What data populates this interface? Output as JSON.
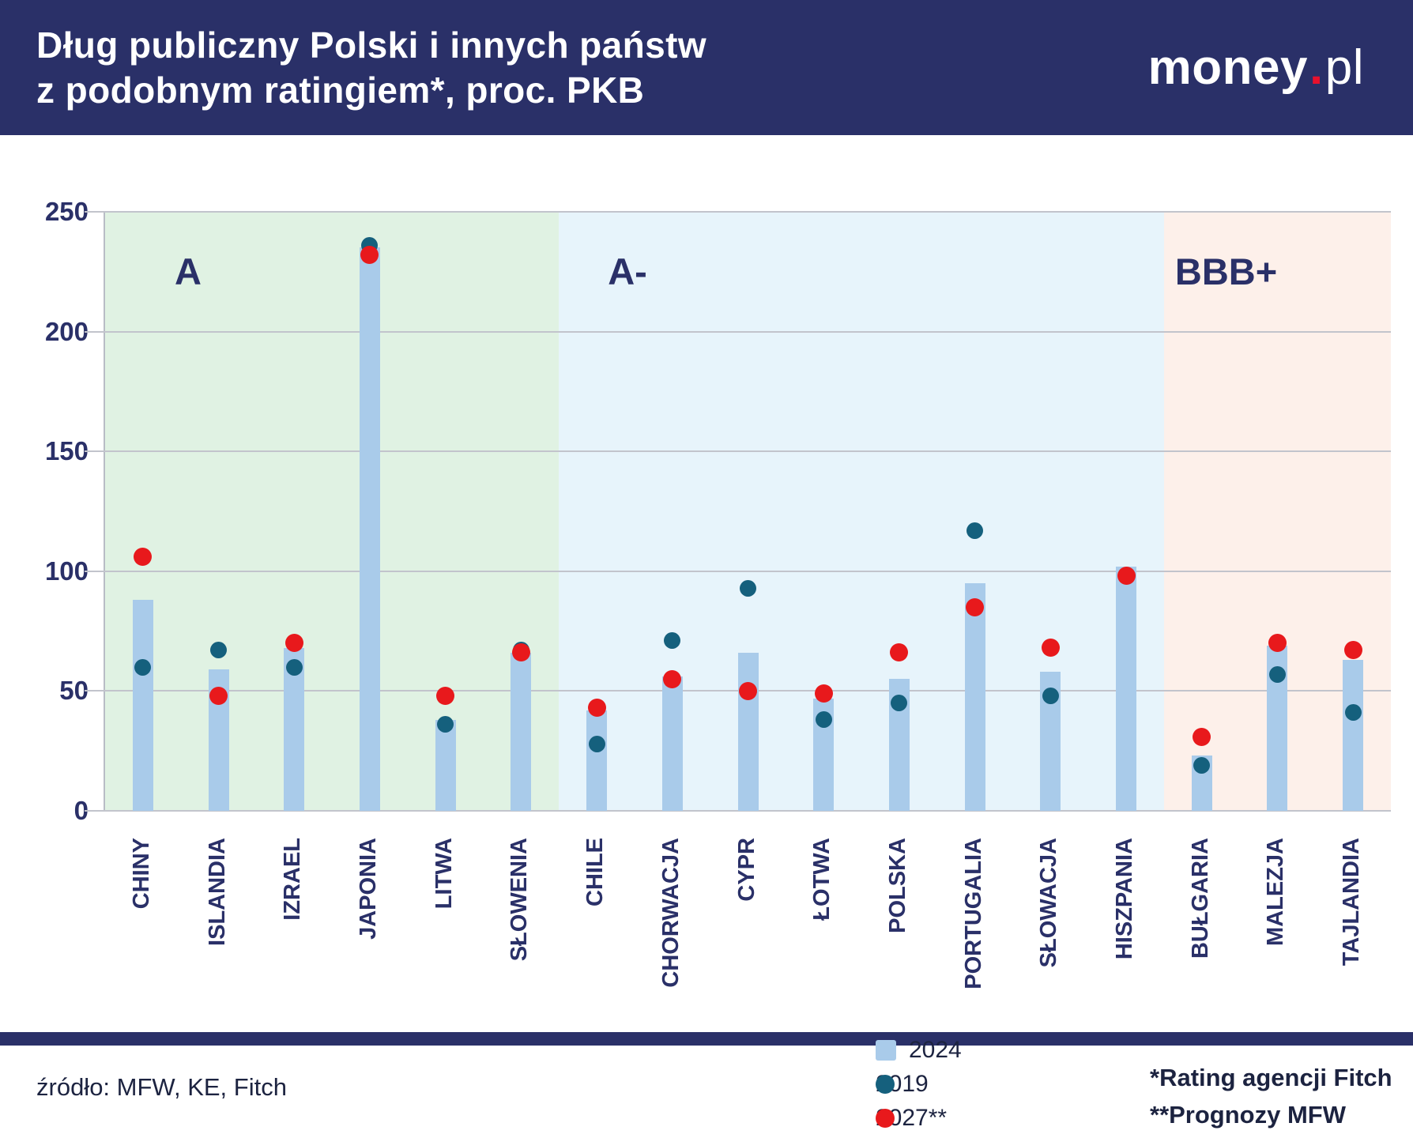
{
  "header": {
    "title_line1": "Dług publiczny Polski i innych państw",
    "title_line2": "z podobnym ratingiem*, proc. PKB",
    "logo": {
      "part1": "money",
      "dot": ".",
      "part2": "pl"
    }
  },
  "chart_data": {
    "type": "bar",
    "title": "Dług publiczny Polski i innych państw z podobnym ratingiem, proc. PKB",
    "xlabel": "",
    "ylabel": "",
    "ylim": [
      0,
      250
    ],
    "yticks": [
      0,
      50,
      100,
      150,
      200,
      250
    ],
    "grid": true,
    "legend_position": "bottom",
    "categories": [
      "CHINY",
      "ISLANDIA",
      "IZRAEL",
      "JAPONIA",
      "LITWA",
      "SŁOWENIA",
      "CHILE",
      "CHORWACJA",
      "CYPR",
      "ŁOTWA",
      "POLSKA",
      "PORTUGALIA",
      "SŁOWACJA",
      "HISZPANIA",
      "BUŁGARIA",
      "MALEZJA",
      "TAJLANDIA"
    ],
    "series": [
      {
        "name": "2024",
        "style": "bar",
        "color": "#a9cbea",
        "values": [
          88,
          59,
          68,
          235,
          38,
          66,
          42,
          56,
          66,
          47,
          55,
          95,
          58,
          102,
          23,
          69,
          63
        ]
      },
      {
        "name": "2019",
        "style": "dot",
        "color": "#15607d",
        "values": [
          60,
          67,
          60,
          236,
          36,
          67,
          28,
          71,
          93,
          38,
          45,
          117,
          48,
          98,
          19,
          57,
          41
        ]
      },
      {
        "name": "2027**",
        "style": "dot",
        "color": "#e8191c",
        "values": [
          106,
          48,
          70,
          232,
          48,
          66,
          43,
          55,
          50,
          49,
          66,
          85,
          68,
          98,
          31,
          70,
          67
        ]
      }
    ],
    "regions": [
      {
        "label": "A",
        "start": 0,
        "count": 6,
        "color": "#e0f2e3"
      },
      {
        "label": "A-",
        "start": 6,
        "count": 8,
        "color": "#e7f4fb"
      },
      {
        "label": "BBB+",
        "start": 14,
        "count": 3,
        "color": "#fdf0ea"
      }
    ]
  },
  "footer": {
    "source": "źródło: MFW, KE, Fitch",
    "legend": [
      {
        "label": "2024",
        "type": "square",
        "color": "#a9cbea"
      },
      {
        "label": "2019",
        "type": "dot",
        "color": "#15607d"
      },
      {
        "label": "2027**",
        "type": "dot",
        "color": "#e8191c"
      }
    ],
    "notes": [
      "*Rating agencji Fitch",
      "**Prognozy MFW"
    ]
  }
}
